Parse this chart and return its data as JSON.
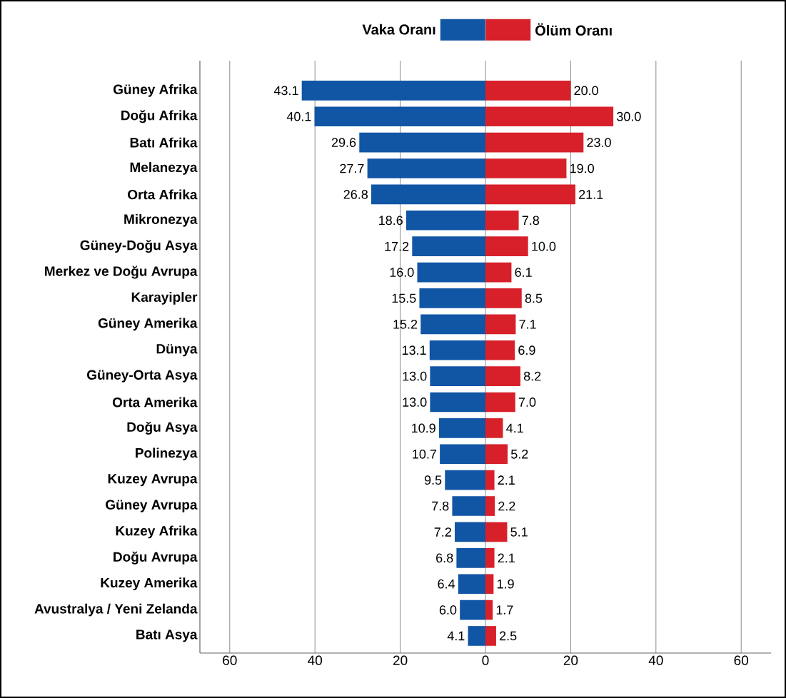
{
  "chart_data": [
    {
      "type": "bar",
      "orientation": "horizontal",
      "categories": [
        "Güney Afrika",
        "Doğu Afrika",
        "Batı Afrika",
        "Melanezya",
        "Orta Afrika",
        "Mikronezya",
        "Güney-Doğu Asya",
        "Merkez ve Doğu Avrupa",
        "Karayipler",
        "Güney Amerika",
        "Dünya",
        "Güney-Orta Asya",
        "Orta Amerika",
        "Doğu Asya",
        "Polinezya",
        "Kuzey Avrupa",
        "Güney Avrupa",
        "Kuzey Afrika",
        "Doğu Avrupa",
        "Kuzey Amerika",
        "Avustralya / Yeni Zelanda",
        "Batı Asya"
      ],
      "series": [
        {
          "name": "Vaka Oranı",
          "color": "#1155a5",
          "values": [
            43.1,
            40.1,
            29.6,
            27.7,
            26.8,
            18.6,
            17.2,
            16.0,
            15.5,
            15.2,
            13.1,
            13.0,
            13.0,
            10.9,
            10.7,
            9.5,
            7.8,
            7.2,
            6.8,
            6.4,
            6.0,
            4.1
          ],
          "value_labels": [
            "43.1",
            "40.1",
            "29.6",
            "27.7",
            "26.8",
            "18.6",
            "17.2",
            "16.0",
            "15.5",
            "15.2",
            "13.1",
            "13.0",
            "13.0",
            "10.9",
            "10.7",
            "9.5",
            "7.8",
            "7.2",
            "6.8",
            "6.4",
            "6.0",
            "4.1"
          ]
        }
      ],
      "xlim": [
        67,
        0
      ],
      "xticks": [
        60,
        40,
        20,
        0
      ],
      "grid": "x",
      "legend": "top"
    },
    {
      "type": "bar",
      "orientation": "horizontal",
      "categories": [
        null,
        null,
        null,
        null,
        null,
        null,
        null,
        null,
        null,
        null,
        null,
        null,
        null,
        null,
        null,
        null,
        null,
        null,
        null,
        null,
        null,
        null
      ],
      "series": [
        {
          "name": "Ölüm Oranı",
          "color": "#d7202a",
          "values": [
            20.0,
            30.0,
            23.0,
            19.0,
            21.1,
            7.8,
            10.0,
            6.1,
            8.5,
            7.1,
            6.9,
            8.2,
            7.0,
            4.1,
            5.2,
            2.1,
            2.2,
            5.1,
            2.1,
            1.9,
            1.7,
            2.5
          ],
          "value_labels": [
            "20.0",
            "30.0",
            "23.0",
            "19.0",
            "21.1",
            "7.8",
            "10.0",
            "6.1",
            "8.5",
            "7.1",
            "6.9",
            "8.2",
            "7.0",
            "4.1",
            "5.2",
            "2.1",
            "2.2",
            "5.1",
            "2.1",
            "1.9",
            "1.7",
            "2.5"
          ]
        }
      ],
      "xlim": [
        0,
        67
      ],
      "xticks": [
        20,
        40,
        60
      ],
      "grid": "x",
      "legend": "top",
      "tick_labels": "x"
    }
  ]
}
